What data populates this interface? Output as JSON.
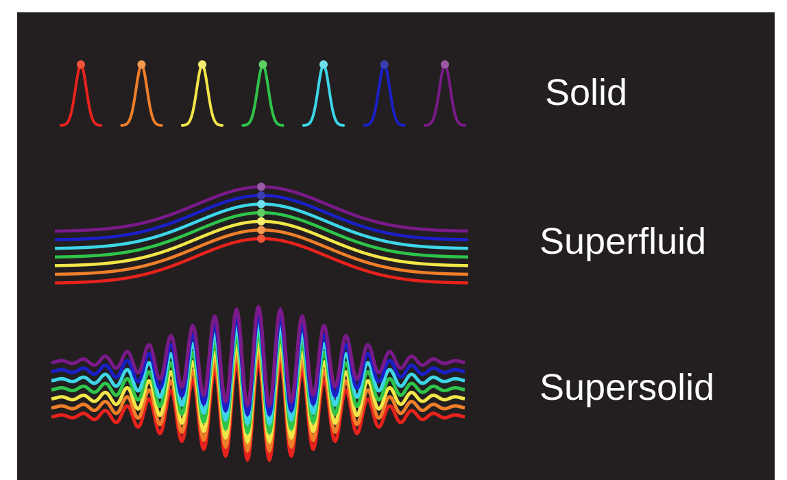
{
  "labels": {
    "solid": "Solid",
    "superfluid": "Superfluid",
    "supersolid": "Supersolid"
  }
}
